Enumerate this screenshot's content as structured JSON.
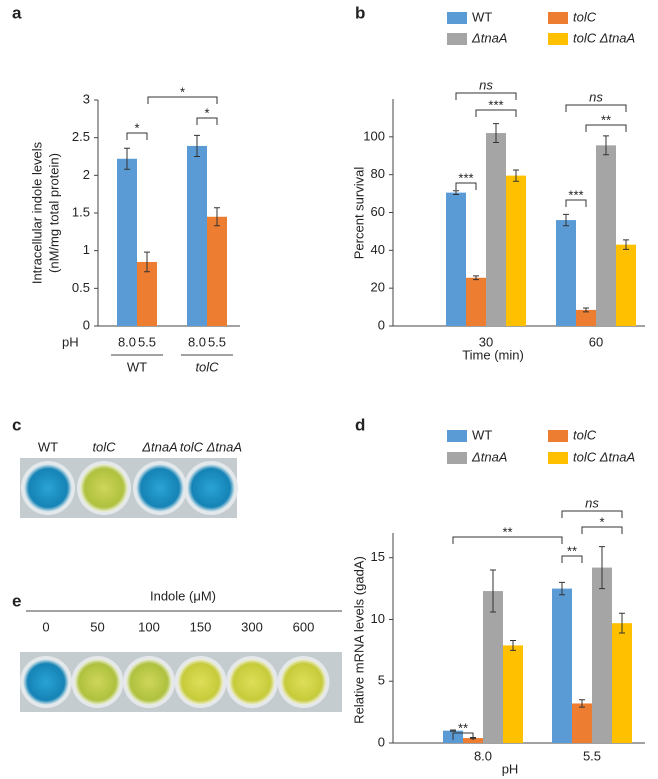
{
  "chart_data": [
    {
      "type": "bar",
      "panel": "a",
      "ylabel": [
        "Intracellular indole levels",
        "(nM/mg total protein)"
      ],
      "categories": [
        "WT",
        "tolC"
      ],
      "categories_italic": [
        false,
        true
      ],
      "x_prefix": "pH",
      "series": [
        {
          "name": "8.0",
          "color": "#5b9bd5",
          "values": [
            2.22,
            2.39
          ],
          "errors": [
            0.14,
            0.14
          ]
        },
        {
          "name": "5.5",
          "color": "#ed7d31",
          "values": [
            0.85,
            1.45
          ],
          "errors": [
            0.13,
            0.12
          ]
        }
      ],
      "ylim": [
        0,
        3
      ],
      "yticks": [
        0,
        0.5,
        1,
        1.5,
        2,
        2.5,
        3
      ],
      "annotations": [
        "*",
        "*",
        "*"
      ],
      "legend": false
    },
    {
      "type": "bar",
      "panel": "b",
      "ylabel": [
        "Percent survival"
      ],
      "xlabel": "Time (min)",
      "categories": [
        "30",
        "60"
      ],
      "series": [
        {
          "name": "WT",
          "italic": false,
          "color": "#5b9bd5",
          "values": [
            70.5,
            56
          ],
          "errors": [
            1,
            3
          ]
        },
        {
          "name": "tolC",
          "italic": true,
          "color": "#ed7d31",
          "values": [
            25.5,
            8.5
          ],
          "errors": [
            1,
            1
          ]
        },
        {
          "name": "ΔtnaA",
          "italic": true,
          "color": "#a5a5a5",
          "values": [
            102,
            95.5
          ],
          "errors": [
            5,
            5
          ]
        },
        {
          "name": "tolC ΔtnaA",
          "italic": true,
          "color": "#ffc000",
          "values": [
            79.5,
            43
          ],
          "errors": [
            3,
            2.5
          ]
        }
      ],
      "ylim": [
        0,
        120
      ],
      "yticks": [
        0,
        20,
        40,
        60,
        80,
        100
      ],
      "annotations": [
        "***",
        "***",
        "ns",
        "***",
        "**",
        "ns"
      ],
      "legend": true
    },
    {
      "type": "bar",
      "panel": "d",
      "ylabel": [
        "Relative mRNA levels (gadA)"
      ],
      "xlabel": "pH",
      "categories": [
        "8.0",
        "5.5"
      ],
      "series": [
        {
          "name": "WT",
          "italic": false,
          "color": "#5b9bd5",
          "values": [
            1.0,
            12.5
          ],
          "errors": [
            0.05,
            0.5
          ]
        },
        {
          "name": "tolC",
          "italic": true,
          "color": "#ed7d31",
          "values": [
            0.4,
            3.2
          ],
          "errors": [
            0.05,
            0.3
          ]
        },
        {
          "name": "ΔtnaA",
          "italic": true,
          "color": "#a5a5a5",
          "values": [
            12.3,
            14.2
          ],
          "errors": [
            1.7,
            1.7
          ]
        },
        {
          "name": "tolC ΔtnaA",
          "italic": true,
          "color": "#ffc000",
          "values": [
            7.9,
            9.7
          ],
          "errors": [
            0.4,
            0.8
          ]
        }
      ],
      "ylim": [
        0,
        17
      ],
      "yticks": [
        0,
        5,
        10,
        15
      ],
      "annotations": [
        "**",
        "**",
        "ns",
        "*",
        "**"
      ],
      "legend": true
    }
  ],
  "images": [
    {
      "panel": "c",
      "labels": [
        "WT",
        "tolC",
        "ΔtnaA",
        "tolC ΔtnaA"
      ],
      "labels_italic": [
        false,
        true,
        true,
        true
      ]
    },
    {
      "panel": "e",
      "title": "Indole (μM)",
      "labels": [
        "0",
        "50",
        "100",
        "150",
        "300",
        "600"
      ]
    }
  ]
}
